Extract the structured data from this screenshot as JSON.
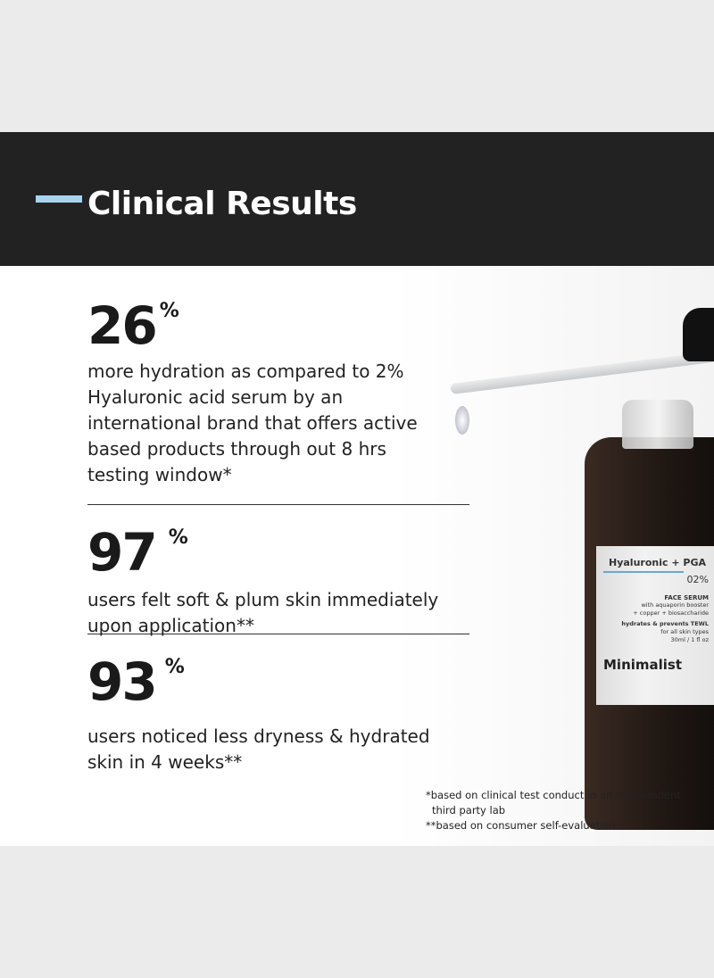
{
  "header": {
    "title": "Clinical Results",
    "accent_color": "#a9d4ee"
  },
  "stats": [
    {
      "value": "26",
      "unit": "%",
      "description": "more hydration as compared to 2% Hyaluronic acid serum by an international brand that offers active based products through out 8 hrs testing window*"
    },
    {
      "value": "97",
      "unit": "%",
      "description": "users felt soft & plum skin immediately upon application**"
    },
    {
      "value": "93",
      "unit": "%",
      "description": "users noticed less dryness & hydrated skin in 4 weeks**"
    }
  ],
  "footnotes": [
    "*based on clinical test conduct in an independent",
    "third party lab",
    "**based on consumer self-evaluation"
  ],
  "product": {
    "name": "Hyaluronic + PGA",
    "concentration": "02%",
    "type": "FACE SERUM",
    "ingredients_1": "with aquaporin booster",
    "ingredients_2": "+ copper + biosaccharide",
    "claim": "hydrates & prevents TEWL",
    "skin": "for all skin types",
    "size": "30ml / 1 fl oz",
    "brand": "Minimalist"
  }
}
